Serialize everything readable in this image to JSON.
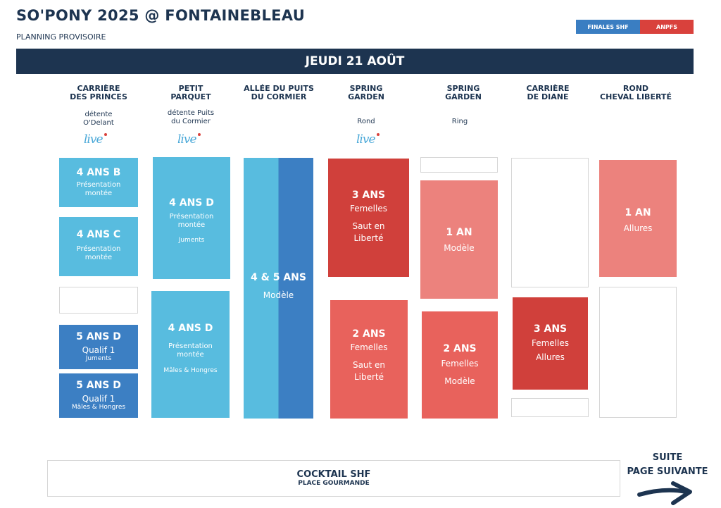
{
  "header": {
    "title": "SO'PONY 2025 @ FONTAINEBLEAU",
    "subtitle": "PLANNING PROVISOIRE"
  },
  "legend": {
    "items": [
      {
        "label": "FINALES SHF",
        "color": "#3a7ec2"
      },
      {
        "label": "ANPFS",
        "color": "#d9413c"
      }
    ]
  },
  "day": "JEUDI 21 AOÛT",
  "columns": [
    {
      "line1": "CARRIÈRE",
      "line2": "DES PRINCES",
      "sub1": "détente",
      "sub2": "O'Delant",
      "live": "live"
    },
    {
      "line1": "PETIT",
      "line2": "PARQUET",
      "sub1": "détente Puits",
      "sub2": "du Cormier",
      "live": "live"
    },
    {
      "line1": "ALLÉE DU PUITS",
      "line2": "DU CORMIER"
    },
    {
      "line1": "SPRING",
      "line2": "GARDEN",
      "sub1": "Rond",
      "live": "live"
    },
    {
      "line1": "SPRING",
      "line2": "GARDEN",
      "sub1": "Ring"
    },
    {
      "line1": "CARRIÈRE",
      "line2": "DE DIANE"
    },
    {
      "line1": "ROND",
      "line2": "CHEVAL LIBERTÉ"
    }
  ],
  "blocks": {
    "c1_b1": {
      "title": "4 ANS B",
      "l1": "Présentation",
      "l2": "montée"
    },
    "c1_b2": {
      "title": "4 ANS C",
      "l1": "Présentation",
      "l2": "montée"
    },
    "c1_b3": {
      "title": "5 ANS D",
      "l1": "Qualif 1",
      "l2": "Juments"
    },
    "c1_b4": {
      "title": "5 ANS D",
      "l1": "Qualif 1",
      "l2": "Mâles & Hongres"
    },
    "c2_b1": {
      "title": "4 ANS D",
      "l1": "Présentation",
      "l2": "montée",
      "l3": "Juments"
    },
    "c2_b2": {
      "title": "4 ANS D",
      "l1": "Présentation",
      "l2": "montée",
      "l3": "Mâles & Hongres"
    },
    "c3_b1": {
      "title": "4 & 5 ANS",
      "l1": "Modèle"
    },
    "c4_b1": {
      "title": "3 ANS",
      "l1": "Femelles",
      "l2": "Saut en",
      "l3": "Liberté"
    },
    "c4_b2": {
      "title": "2 ANS",
      "l1": "Femelles",
      "l2": "Saut en",
      "l3": "Liberté"
    },
    "c5_b1": {
      "title": "1 AN",
      "l1": "Modèle"
    },
    "c5_b2": {
      "title": "2 ANS",
      "l1": "Femelles",
      "l2": "Modèle"
    },
    "c6_b1": {
      "title": "3 ANS",
      "l1": "Femelles",
      "l2": "Allures"
    },
    "c7_b1": {
      "title": "1 AN",
      "l1": "Allures"
    }
  },
  "footer": {
    "cocktail_title": "COCKTAIL SHF",
    "cocktail_sub": "PLACE GOURMANDE",
    "suite1": "SUITE",
    "suite2": "PAGE SUIVANTE"
  }
}
